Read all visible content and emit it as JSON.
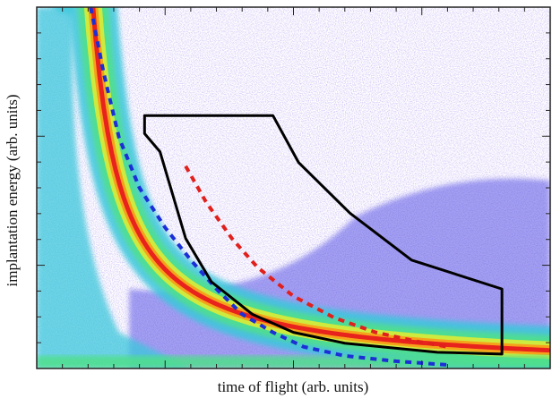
{
  "chart_data": {
    "type": "heatmap",
    "title": "",
    "xlabel": "time of flight (arb. units)",
    "ylabel": "implantation energy (arb. units)",
    "axes": {
      "x_tick_labels": false,
      "y_tick_labels": false,
      "grid": false
    },
    "colormap": [
      "#7f5fd6",
      "#5a55e6",
      "#3bc7dc",
      "#4fe08a",
      "#d6ea3a",
      "#f5a21a",
      "#e8221c"
    ],
    "density": {
      "description_free": true,
      "locus": {
        "curve": "hyperbolic",
        "a": 0.055,
        "b": 0.16
      },
      "background_scatter": "sparse",
      "band_at_bottom": true
    },
    "series": [
      {
        "style": "dashed",
        "color": "#1c2fd6",
        "x": [
          0.105,
          0.13,
          0.16,
          0.2,
          0.25,
          0.3,
          0.35,
          0.4,
          0.46,
          0.52,
          0.6,
          0.7,
          0.8
        ],
        "y": [
          1.0,
          0.82,
          0.64,
          0.5,
          0.39,
          0.3,
          0.22,
          0.15,
          0.1,
          0.06,
          0.035,
          0.02,
          0.01
        ]
      },
      {
        "style": "dashed",
        "color": "#e0201c",
        "x": [
          0.29,
          0.33,
          0.38,
          0.43,
          0.5,
          0.58,
          0.66,
          0.74,
          0.8
        ],
        "y": [
          0.56,
          0.46,
          0.36,
          0.28,
          0.2,
          0.14,
          0.1,
          0.075,
          0.06
        ]
      },
      {
        "style": "solid",
        "color": "#000000",
        "closed": true,
        "x": [
          0.21,
          0.46,
          0.51,
          0.61,
          0.73,
          0.906,
          0.906,
          0.78,
          0.6,
          0.5,
          0.42,
          0.34,
          0.29,
          0.24,
          0.21
        ],
        "y": [
          0.7,
          0.7,
          0.57,
          0.43,
          0.3,
          0.22,
          0.04,
          0.045,
          0.07,
          0.1,
          0.15,
          0.24,
          0.36,
          0.6,
          0.65
        ]
      }
    ]
  }
}
